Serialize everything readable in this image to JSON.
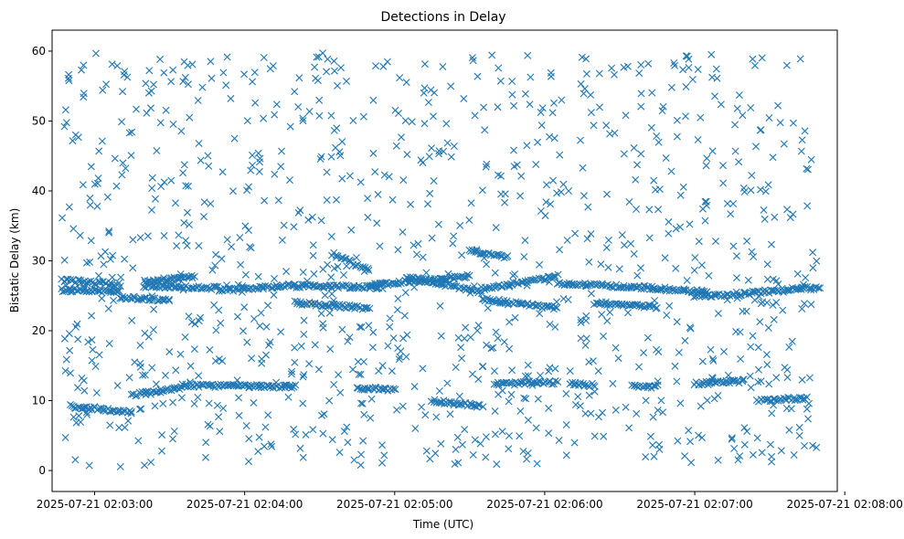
{
  "chart_data": {
    "type": "scatter",
    "title": "Detections in Delay",
    "xlabel": "Time (UTC)",
    "ylabel": "Bistatic Delay (km)",
    "marker": "x",
    "color": "#1f77b4",
    "grid": false,
    "x_start": "2025-07-21 02:02:47",
    "x_end": "2025-07-21 02:07:50",
    "xlim": [
      "2025-07-21 02:02:43",
      "2025-07-21 02:07:57"
    ],
    "ylim": [
      -3,
      63
    ],
    "x_ticks": [
      "2025-07-21 02:03:00",
      "2025-07-21 02:04:00",
      "2025-07-21 02:05:00",
      "2025-07-21 02:06:00",
      "2025-07-21 02:07:00",
      "2025-07-21 02:08:00"
    ],
    "y_ticks": [
      "0",
      "10",
      "20",
      "30",
      "40",
      "50",
      "60"
    ],
    "tracks": [
      {
        "x_from": "02:02:47",
        "x_to": "02:03:10",
        "y_from": 27.2,
        "y_to": 26.6
      },
      {
        "x_from": "02:02:47",
        "x_to": "02:03:10",
        "y_from": 25.8,
        "y_to": 25.6
      },
      {
        "x_from": "02:03:10",
        "x_to": "02:03:30",
        "y_from": 24.8,
        "y_to": 24.4
      },
      {
        "x_from": "02:03:20",
        "x_to": "02:03:50",
        "y_from": 26.4,
        "y_to": 26.1
      },
      {
        "x_from": "02:03:50",
        "x_to": "02:04:20",
        "y_from": 25.8,
        "y_to": 26.5
      },
      {
        "x_from": "02:04:20",
        "x_to": "02:04:55",
        "y_from": 26.4,
        "y_to": 26.2
      },
      {
        "x_from": "02:04:20",
        "x_to": "02:04:50",
        "y_from": 24.0,
        "y_to": 23.2
      },
      {
        "x_from": "02:04:50",
        "x_to": "02:05:30",
        "y_from": 26.5,
        "y_to": 27.8
      },
      {
        "x_from": "02:05:05",
        "x_to": "02:05:35",
        "y_from": 27.6,
        "y_to": 25.6
      },
      {
        "x_from": "02:05:35",
        "x_to": "02:06:05",
        "y_from": 26.0,
        "y_to": 27.8
      },
      {
        "x_from": "02:05:35",
        "x_to": "02:06:05",
        "y_from": 24.5,
        "y_to": 23.2
      },
      {
        "x_from": "02:06:05",
        "x_to": "02:06:40",
        "y_from": 26.8,
        "y_to": 26.2
      },
      {
        "x_from": "02:06:20",
        "x_to": "02:06:45",
        "y_from": 24.0,
        "y_to": 23.4
      },
      {
        "x_from": "02:06:40",
        "x_to": "02:07:05",
        "y_from": 26.2,
        "y_to": 25.5
      },
      {
        "x_from": "02:07:00",
        "x_to": "02:07:20",
        "y_from": 25.0,
        "y_to": 25.2
      },
      {
        "x_from": "02:07:20",
        "x_to": "02:07:50",
        "y_from": 25.4,
        "y_to": 26.2
      },
      {
        "x_from": "02:02:50",
        "x_to": "02:03:15",
        "y_from": 9.2,
        "y_to": 8.4
      },
      {
        "x_from": "02:03:15",
        "x_to": "02:03:35",
        "y_from": 10.8,
        "y_to": 11.8
      },
      {
        "x_from": "02:03:35",
        "x_to": "02:04:20",
        "y_from": 12.2,
        "y_to": 12.0
      },
      {
        "x_from": "02:04:45",
        "x_to": "02:05:00",
        "y_from": 11.8,
        "y_to": 11.6
      },
      {
        "x_from": "02:05:15",
        "x_to": "02:05:35",
        "y_from": 10.0,
        "y_to": 9.2
      },
      {
        "x_from": "02:05:40",
        "x_to": "02:06:05",
        "y_from": 12.4,
        "y_to": 12.6
      },
      {
        "x_from": "02:06:10",
        "x_to": "02:06:20",
        "y_from": 12.4,
        "y_to": 12.2
      },
      {
        "x_from": "02:06:35",
        "x_to": "02:06:45",
        "y_from": 12.2,
        "y_to": 12.0
      },
      {
        "x_from": "02:07:00",
        "x_to": "02:07:20",
        "y_from": 12.4,
        "y_to": 12.8
      },
      {
        "x_from": "02:07:25",
        "x_to": "02:07:45",
        "y_from": 10.0,
        "y_to": 10.4
      },
      {
        "x_from": "02:03:20",
        "x_to": "02:03:40",
        "y_from": 27.0,
        "y_to": 27.8
      },
      {
        "x_from": "02:04:35",
        "x_to": "02:04:50",
        "y_from": 31.0,
        "y_to": 28.6
      },
      {
        "x_from": "02:05:30",
        "x_to": "02:05:45",
        "y_from": 31.5,
        "y_to": 30.5
      }
    ]
  }
}
